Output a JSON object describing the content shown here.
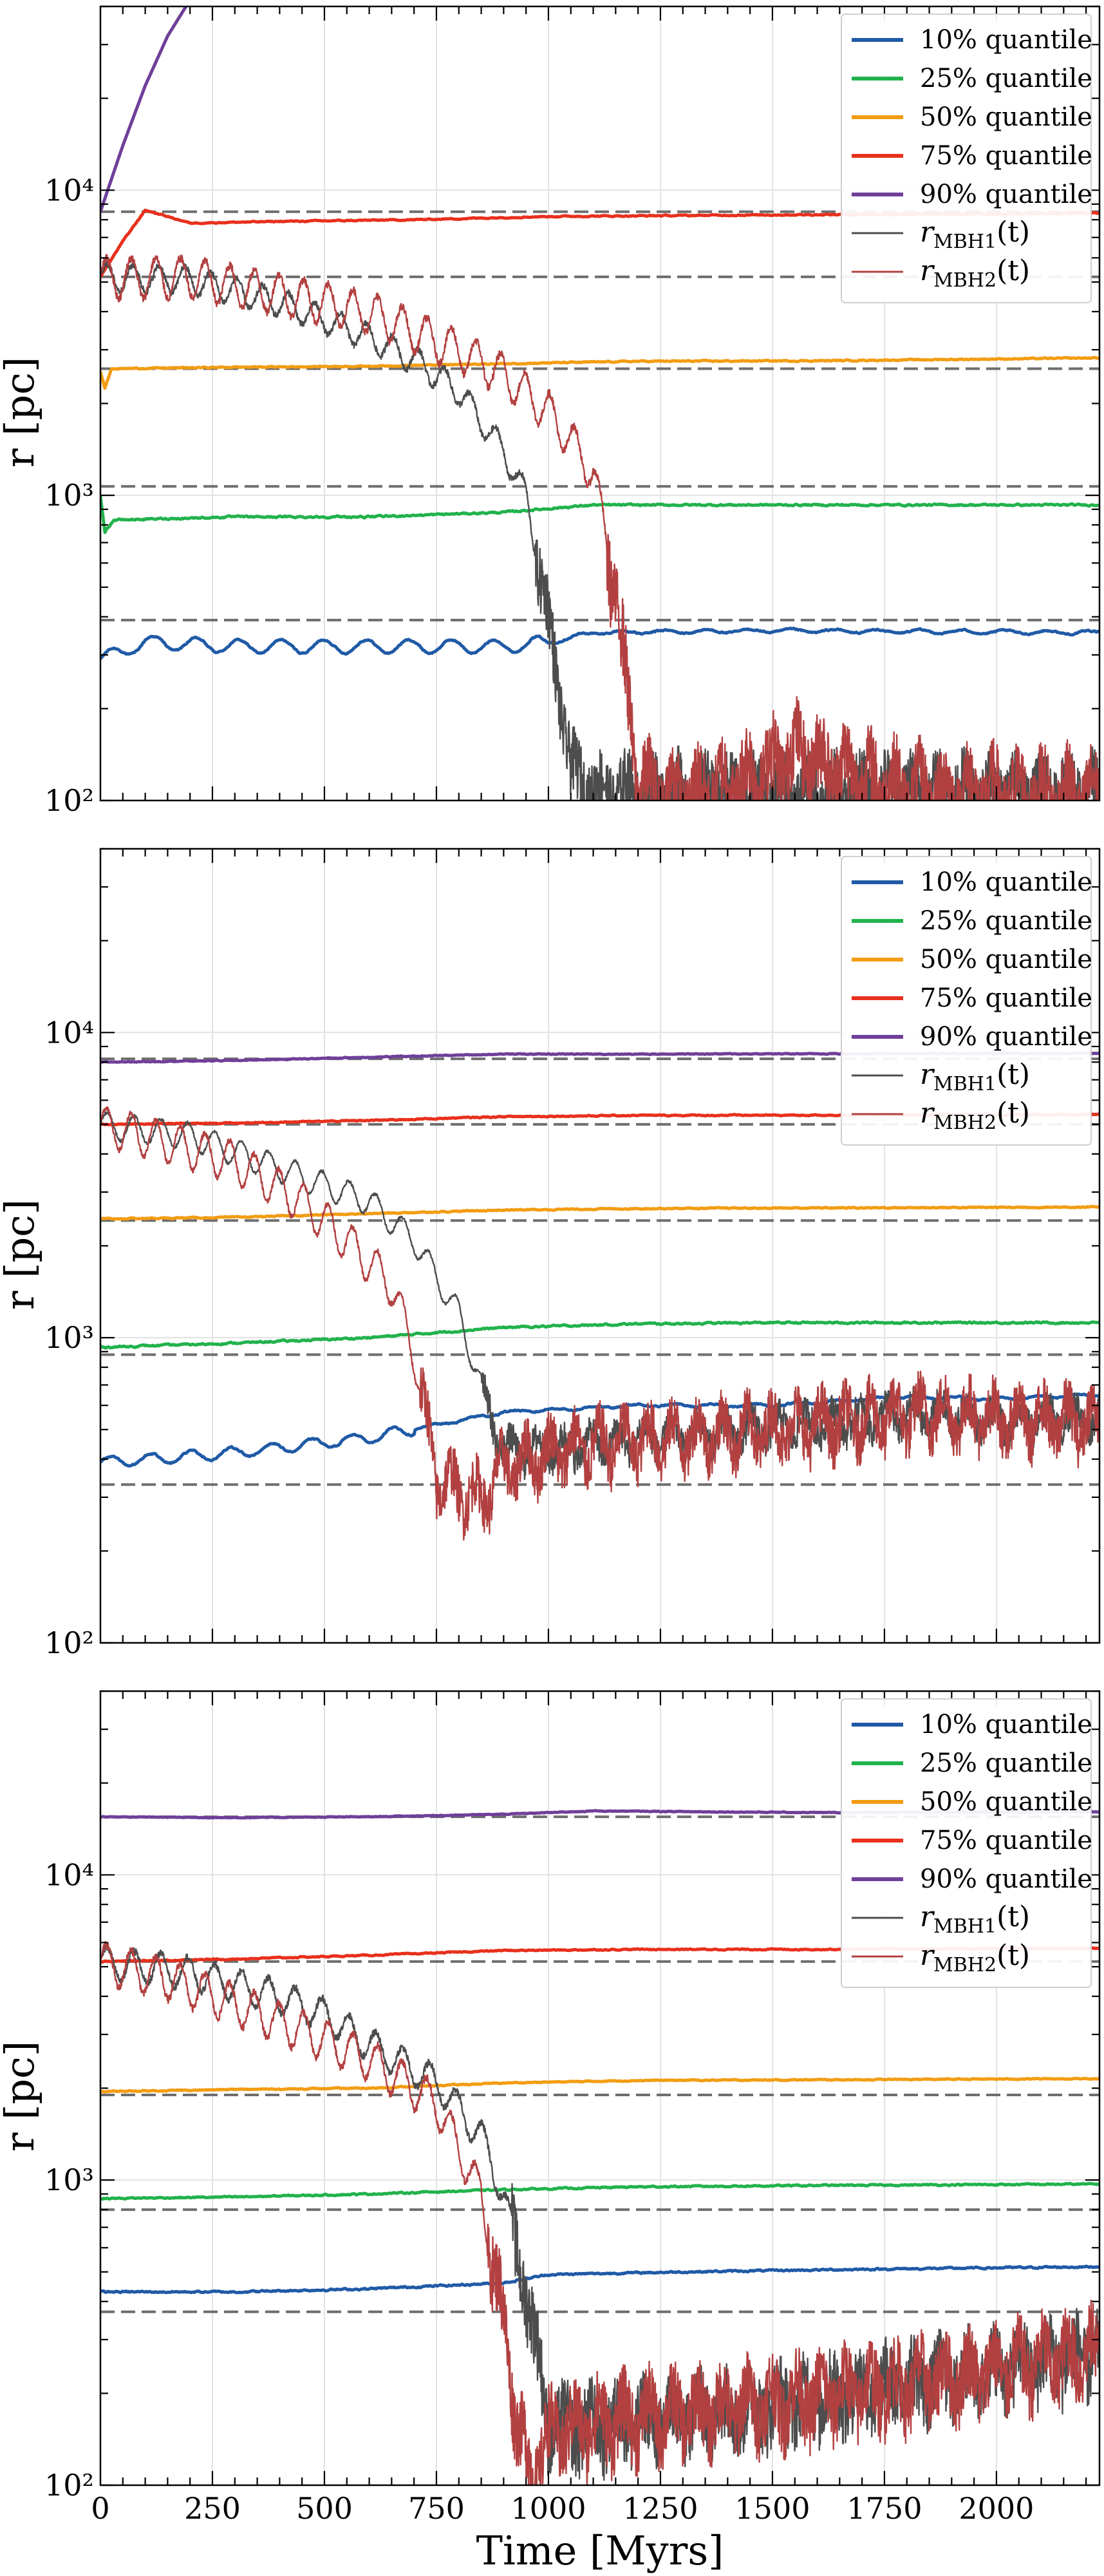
{
  "chart_data": [
    {
      "type": "line",
      "xlabel": "",
      "ylabel": "r [pc]",
      "yscale": "log",
      "xlim": [
        0,
        2230
      ],
      "ylim": [
        100,
        40000
      ],
      "xticks": [
        0,
        250,
        500,
        750,
        1000,
        1250,
        1500,
        1750,
        2000
      ],
      "xtick_labels": [
        "",
        "",
        "",
        "",
        "",
        "",
        "",
        "",
        ""
      ],
      "yticks": [
        100,
        1000,
        10000
      ],
      "ytick_labels": [
        "10²",
        "10³",
        "10⁴"
      ],
      "grid": true,
      "legend_position": "top-right",
      "legend": [
        "10% quantile",
        "25% quantile",
        "50% quantile",
        "75% quantile",
        "90% quantile",
        "r_MBH1(t)",
        "r_MBH2(t)"
      ],
      "reference_lines": [
        390,
        1070,
        2600,
        5200,
        8500
      ],
      "series": [
        {
          "name": "10% quantile",
          "color": "#1f5aa6",
          "kind": "noisy",
          "x": [
            0,
            100,
            300,
            600,
            900,
            1000,
            1100,
            1500,
            2230
          ],
          "y": [
            290,
            330,
            320,
            320,
            320,
            330,
            355,
            360,
            355
          ],
          "osc_amp": 0.05,
          "osc_period": 95,
          "osc_until": 1000,
          "noise": 0.012
        },
        {
          "name": "25% quantile",
          "color": "#22b24c",
          "kind": "noisy",
          "x": [
            0,
            10,
            30,
            300,
            600,
            900,
            1100,
            1500,
            2230
          ],
          "y": [
            1000,
            760,
            830,
            850,
            850,
            880,
            930,
            930,
            930
          ],
          "noise": 0.012
        },
        {
          "name": "50% quantile",
          "color": "#f39c12",
          "kind": "noisy",
          "x": [
            0,
            10,
            25,
            300,
            600,
            900,
            1200,
            1600,
            2230
          ],
          "y": [
            2550,
            2250,
            2600,
            2630,
            2650,
            2700,
            2750,
            2760,
            2820
          ],
          "noise": 0.008
        },
        {
          "name": "75% quantile",
          "color": "#e8301c",
          "kind": "noisy",
          "x": [
            0,
            50,
            100,
            150,
            200,
            400,
            700,
            1000,
            1500,
            2230
          ],
          "y": [
            5200,
            6800,
            8600,
            8200,
            7800,
            7900,
            8000,
            8200,
            8300,
            8400
          ],
          "noise": 0.008
        },
        {
          "name": "90% quantile",
          "color": "#6f3f99",
          "kind": "noisy",
          "x": [
            0,
            50,
            100,
            150,
            200
          ],
          "y": [
            8500,
            14000,
            22000,
            32000,
            42000
          ],
          "noise": 0.0
        },
        {
          "name": "r_MBH1(t)",
          "color": "#4d4d4d",
          "kind": "orbit",
          "x": [
            0,
            200,
            400,
            600,
            700,
            800,
            900,
            950,
            1000,
            1050,
            1100,
            2230
          ],
          "y": [
            5200,
            5100,
            4300,
            3300,
            2800,
            2200,
            1400,
            1000,
            400,
            130,
            110,
            110
          ],
          "osc_amp": 0.1,
          "osc_period": 58,
          "noise": 0.25
        },
        {
          "name": "r_MBH2(t)",
          "color": "#b34040",
          "kind": "orbit",
          "x": [
            0,
            200,
            400,
            600,
            800,
            900,
            1000,
            1100,
            1150,
            1200,
            1300,
            1400,
            1500,
            1550,
            1650,
            1800,
            2230
          ],
          "y": [
            5200,
            5200,
            4600,
            4000,
            3000,
            2500,
            1900,
            1200,
            500,
            115,
            105,
            115,
            135,
            150,
            130,
            110,
            105
          ],
          "osc_amp": 0.15,
          "osc_period": 55,
          "noise": 0.3
        }
      ]
    },
    {
      "type": "line",
      "xlabel": "",
      "ylabel": "r [pc]",
      "yscale": "log",
      "xlim": [
        0,
        2230
      ],
      "ylim": [
        100,
        40000
      ],
      "xticks": [
        0,
        250,
        500,
        750,
        1000,
        1250,
        1500,
        1750,
        2000
      ],
      "xtick_labels": [
        "",
        "",
        "",
        "",
        "",
        "",
        "",
        "",
        ""
      ],
      "yticks": [
        100,
        1000,
        10000
      ],
      "ytick_labels": [
        "10²",
        "10³",
        "10⁴"
      ],
      "grid": true,
      "legend_position": "top-right",
      "legend": [
        "10% quantile",
        "25% quantile",
        "50% quantile",
        "75% quantile",
        "90% quantile",
        "r_MBH1(t)",
        "r_MBH2(t)"
      ],
      "reference_lines": [
        330,
        880,
        2420,
        5000,
        8200
      ],
      "series": [
        {
          "name": "10% quantile",
          "color": "#1f5aa6",
          "kind": "noisy",
          "x": [
            0,
            300,
            600,
            900,
            1200,
            1500,
            1800,
            2000,
            2230
          ],
          "y": [
            390,
            420,
            470,
            570,
            600,
            600,
            640,
            630,
            650
          ],
          "osc_amp": 0.04,
          "osc_period": 90,
          "osc_until": 700,
          "noise": 0.012
        },
        {
          "name": "25% quantile",
          "color": "#22b24c",
          "kind": "noisy",
          "x": [
            0,
            300,
            600,
            900,
            1200,
            1500,
            2230
          ],
          "y": [
            930,
            960,
            1000,
            1080,
            1110,
            1120,
            1120
          ],
          "noise": 0.012
        },
        {
          "name": "50% quantile",
          "color": "#f39c12",
          "kind": "noisy",
          "x": [
            0,
            300,
            600,
            900,
            1200,
            2230
          ],
          "y": [
            2450,
            2480,
            2550,
            2620,
            2650,
            2680
          ],
          "noise": 0.008
        },
        {
          "name": "75% quantile",
          "color": "#e8301c",
          "kind": "noisy",
          "x": [
            0,
            300,
            600,
            900,
            1200,
            2230
          ],
          "y": [
            5000,
            5050,
            5150,
            5300,
            5350,
            5380
          ],
          "noise": 0.008
        },
        {
          "name": "90% quantile",
          "color": "#6f3f99",
          "kind": "noisy",
          "x": [
            0,
            300,
            600,
            900,
            1200,
            2230
          ],
          "y": [
            8000,
            8100,
            8300,
            8500,
            8500,
            8550
          ],
          "noise": 0.006
        },
        {
          "name": "r_MBH1(t)",
          "color": "#4d4d4d",
          "kind": "orbit",
          "x": [
            0,
            200,
            400,
            600,
            700,
            800,
            850,
            900,
            1000,
            1200,
            1500,
            1850,
            2000,
            2230
          ],
          "y": [
            5000,
            4600,
            3600,
            2800,
            2100,
            1200,
            700,
            430,
            430,
            470,
            510,
            570,
            540,
            550
          ],
          "osc_amp": 0.1,
          "osc_period": 60,
          "noise": 0.12
        },
        {
          "name": "r_MBH2(t)",
          "color": "#b34040",
          "kind": "orbit",
          "x": [
            0,
            150,
            300,
            450,
            550,
            650,
            700,
            750,
            850,
            900,
            1000,
            1200,
            1500,
            1850,
            2000,
            2230
          ],
          "y": [
            5000,
            4400,
            3800,
            2800,
            2100,
            1500,
            900,
            350,
            300,
            380,
            430,
            470,
            510,
            580,
            550,
            540
          ],
          "osc_amp": 0.15,
          "osc_period": 55,
          "noise": 0.2
        }
      ]
    },
    {
      "type": "line",
      "xlabel": "Time [Myrs]",
      "ylabel": "r [pc]",
      "yscale": "log",
      "xlim": [
        0,
        2230
      ],
      "ylim": [
        100,
        40000
      ],
      "xticks": [
        0,
        250,
        500,
        750,
        1000,
        1250,
        1500,
        1750,
        2000
      ],
      "xtick_labels": [
        "0",
        "250",
        "500",
        "750",
        "1000",
        "1250",
        "1500",
        "1750",
        "2000"
      ],
      "yticks": [
        100,
        1000,
        10000
      ],
      "ytick_labels": [
        "10²",
        "10³",
        "10⁴"
      ],
      "grid": true,
      "legend_position": "top-right",
      "legend": [
        "10% quantile",
        "25% quantile",
        "50% quantile",
        "75% quantile",
        "90% quantile",
        "r_MBH1(t)",
        "r_MBH2(t)"
      ],
      "reference_lines": [
        370,
        800,
        1900,
        5200,
        15500
      ],
      "series": [
        {
          "name": "10% quantile",
          "color": "#1f5aa6",
          "kind": "noisy",
          "x": [
            0,
            300,
            600,
            900,
            1000,
            1300,
            1700,
            2230
          ],
          "y": [
            430,
            430,
            440,
            460,
            490,
            500,
            510,
            520
          ],
          "noise": 0.012
        },
        {
          "name": "25% quantile",
          "color": "#22b24c",
          "kind": "noisy",
          "x": [
            0,
            300,
            600,
            900,
            1200,
            1600,
            2230
          ],
          "y": [
            870,
            880,
            900,
            930,
            950,
            960,
            970
          ],
          "noise": 0.01
        },
        {
          "name": "50% quantile",
          "color": "#f39c12",
          "kind": "noisy",
          "x": [
            0,
            300,
            600,
            900,
            1200,
            1600,
            2230
          ],
          "y": [
            1950,
            1980,
            2000,
            2080,
            2120,
            2130,
            2150
          ],
          "noise": 0.007
        },
        {
          "name": "75% quantile",
          "color": "#e8301c",
          "kind": "noisy",
          "x": [
            0,
            300,
            600,
            900,
            1200,
            1600,
            2230
          ],
          "y": [
            5200,
            5300,
            5450,
            5650,
            5700,
            5700,
            5750
          ],
          "noise": 0.008
        },
        {
          "name": "90% quantile",
          "color": "#6f3f99",
          "kind": "noisy",
          "x": [
            0,
            300,
            600,
            900,
            1100,
            1600,
            2230
          ],
          "y": [
            15500,
            15400,
            15500,
            15800,
            16200,
            16000,
            16100
          ],
          "noise": 0.005
        },
        {
          "name": "r_MBH1(t)",
          "color": "#4d4d4d",
          "kind": "orbit",
          "x": [
            0,
            200,
            400,
            500,
            600,
            750,
            850,
            900,
            950,
            980,
            1000,
            1100,
            1400,
            1800,
            2230
          ],
          "y": [
            5200,
            4800,
            4000,
            3500,
            2800,
            2100,
            1400,
            900,
            450,
            250,
            160,
            160,
            180,
            220,
            280
          ],
          "osc_amp": 0.12,
          "osc_period": 60,
          "noise": 0.28
        },
        {
          "name": "r_MBH2(t)",
          "color": "#b34040",
          "kind": "orbit",
          "x": [
            0,
            150,
            300,
            450,
            600,
            750,
            850,
            900,
            930,
            960,
            1000,
            1100,
            1400,
            1800,
            2230
          ],
          "y": [
            5200,
            4600,
            3800,
            3100,
            2500,
            1800,
            900,
            350,
            170,
            110,
            150,
            165,
            185,
            220,
            280
          ],
          "osc_amp": 0.15,
          "osc_period": 55,
          "noise": 0.28
        }
      ]
    }
  ]
}
